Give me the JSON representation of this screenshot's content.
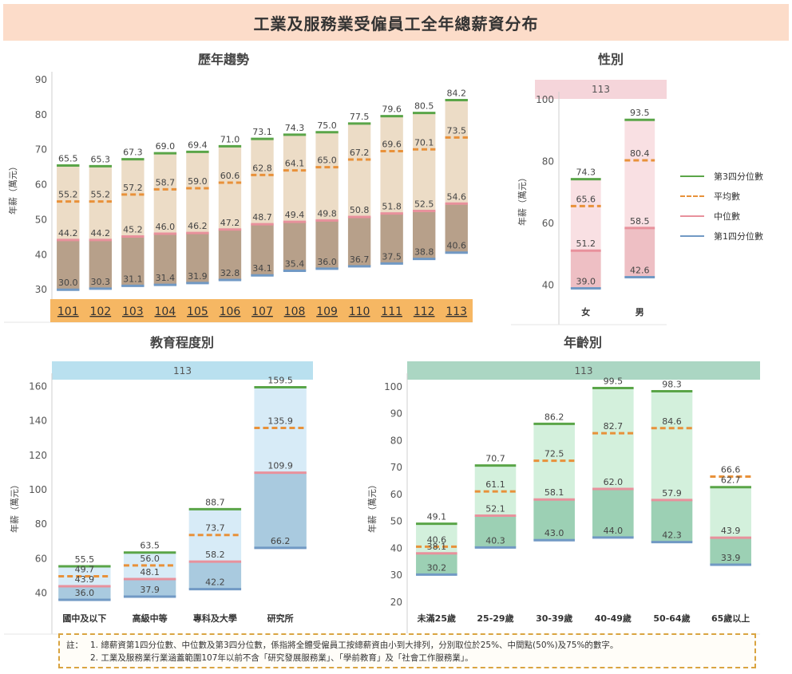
{
  "title": "工業及服務業受僱員工全年總薪資分布",
  "colors": {
    "q3": "#5aa548",
    "mean": "#e8913a",
    "median": "#e8919c",
    "q1": "#7199c4"
  },
  "legend": [
    {
      "key": "q3",
      "label": "第3四分位數",
      "style": "solid"
    },
    {
      "key": "mean",
      "label": "平均數",
      "style": "dashed"
    },
    {
      "key": "median",
      "label": "中位數",
      "style": "solid"
    },
    {
      "key": "q1",
      "label": "第1四分位數",
      "style": "solid"
    }
  ],
  "notes": {
    "prefix": "註：",
    "line1": "1. 總薪資第1四分位數、中位數及第3四分位數，係指將全體受僱員工按總薪資由小到大排列，分別取位於25%、中間點(50%)及75%的數字。",
    "line2": "2. 工業及服務業行業涵蓋範圍107年以前不含「研究發展服務業」、「學前教育」及「社會工作服務業」。"
  },
  "chart_data": [
    {
      "type": "box",
      "title": "歷年趨勢",
      "ylabel": "年薪（萬元）",
      "ylim": [
        28,
        90
      ],
      "yticks": [
        30,
        40,
        50,
        60,
        70,
        80,
        90
      ],
      "categories": [
        "101",
        "102",
        "103",
        "104",
        "105",
        "106",
        "107",
        "108",
        "109",
        "110",
        "111",
        "112",
        "113"
      ],
      "q3": [
        65.5,
        65.3,
        67.3,
        69.0,
        69.4,
        71.0,
        73.1,
        74.3,
        75.0,
        77.5,
        79.6,
        80.5,
        84.2
      ],
      "mean": [
        55.2,
        55.2,
        57.2,
        58.7,
        59.0,
        60.6,
        62.8,
        64.1,
        65.0,
        67.2,
        69.6,
        70.1,
        73.5
      ],
      "median": [
        44.2,
        44.2,
        45.2,
        46.0,
        46.2,
        47.2,
        48.7,
        49.4,
        49.8,
        50.8,
        51.8,
        52.5,
        54.6
      ],
      "q1": [
        30.0,
        30.3,
        31.1,
        31.4,
        31.9,
        32.8,
        34.1,
        35.4,
        36.0,
        36.7,
        37.5,
        38.8,
        40.6
      ],
      "upper_fill": "#ecdcc6",
      "lower_fill": "#b7a08a",
      "category_band_color": "#f6b763"
    },
    {
      "type": "box",
      "title": "性別",
      "header": "113",
      "header_color": "#f5d5da",
      "ylabel": "年薪（萬元）",
      "ylim": [
        35,
        100
      ],
      "yticks": [
        40,
        60,
        80,
        100
      ],
      "categories": [
        "女",
        "男"
      ],
      "q3": [
        74.3,
        93.5
      ],
      "mean": [
        65.6,
        80.4
      ],
      "median": [
        51.2,
        58.5
      ],
      "q1": [
        39.0,
        42.6
      ],
      "upper_fill": "#f9e0e3",
      "lower_fill": "#eebfc4"
    },
    {
      "type": "box",
      "title": "教育程度別",
      "header": "113",
      "header_color": "#b9e0ef",
      "ylabel": "年薪（萬元）",
      "ylim": [
        30,
        163
      ],
      "yticks": [
        40,
        60,
        80,
        100,
        120,
        140,
        160
      ],
      "categories": [
        "國中及以下",
        "高級中等",
        "專科及大學",
        "研究所"
      ],
      "q3": [
        55.5,
        63.5,
        88.7,
        159.5
      ],
      "mean": [
        49.7,
        56.0,
        73.7,
        135.9
      ],
      "median": [
        43.9,
        48.1,
        58.2,
        109.9
      ],
      "q1": [
        36.0,
        37.9,
        42.2,
        66.2
      ],
      "upper_fill": "#d7ebf7",
      "lower_fill": "#a9cadf"
    },
    {
      "type": "box",
      "title": "年齡別",
      "header": "113",
      "header_color": "#abd6c3",
      "ylabel": "年薪（萬元）",
      "ylim": [
        17,
        102
      ],
      "yticks": [
        20,
        30,
        40,
        50,
        60,
        70,
        80,
        90,
        100
      ],
      "categories": [
        "未滿25歲",
        "25-29歲",
        "30-39歲",
        "40-49歲",
        "50-64歲",
        "65歲以上"
      ],
      "q3": [
        49.1,
        70.7,
        86.2,
        99.5,
        98.3,
        62.7
      ],
      "mean": [
        40.6,
        61.1,
        72.5,
        82.7,
        84.6,
        66.6
      ],
      "median": [
        38.1,
        52.1,
        58.1,
        62.0,
        57.9,
        43.9
      ],
      "q1": [
        30.2,
        40.3,
        43.0,
        44.0,
        42.3,
        33.9
      ],
      "upper_fill": "#d3f0dc",
      "lower_fill": "#9cd0b4"
    }
  ]
}
